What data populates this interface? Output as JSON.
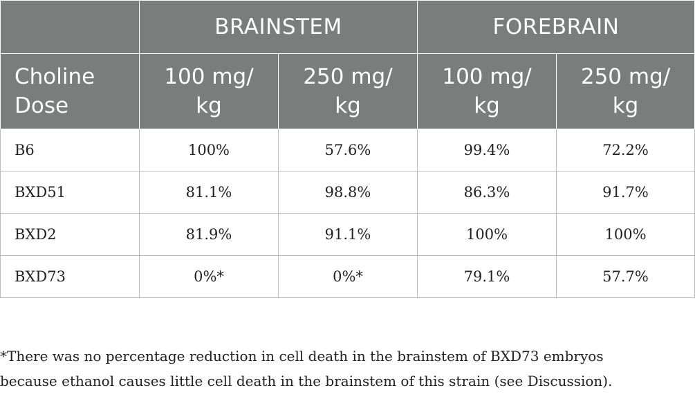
{
  "table": {
    "group_headers": [
      "",
      "BRAINSTEM",
      "FOREBRAIN"
    ],
    "dose_header": {
      "label_line1": "Choline",
      "label_line2": "Dose",
      "doses": [
        {
          "line1": "100 mg/",
          "line2": "kg"
        },
        {
          "line1": "250 mg/",
          "line2": "kg"
        },
        {
          "line1": "100 mg/",
          "line2": "kg"
        },
        {
          "line1": "250 mg/",
          "line2": "kg"
        }
      ]
    },
    "rows": [
      {
        "strain": "B6",
        "values": [
          "100%",
          "57.6%",
          "99.4%",
          "72.2%"
        ]
      },
      {
        "strain": "BXD51",
        "values": [
          "81.1%",
          "98.8%",
          "86.3%",
          "91.7%"
        ]
      },
      {
        "strain": "BXD2",
        "values": [
          "81.9%",
          "91.1%",
          "100%",
          "100%"
        ]
      },
      {
        "strain": "BXD73",
        "values": [
          "0%*",
          "0%*",
          "79.1%",
          "57.7%"
        ]
      }
    ]
  },
  "footnote": {
    "line1": "*There was no percentage reduction in cell death in the brainstem of BXD73 embryos",
    "line2": "because ethanol causes little cell death in the brainstem of this strain (see Discussion)."
  },
  "colors": {
    "header_bg": "#7b7c7c",
    "header_text": "#ffffff",
    "body_text": "#222222",
    "grid_line": "#bdbdbd"
  }
}
